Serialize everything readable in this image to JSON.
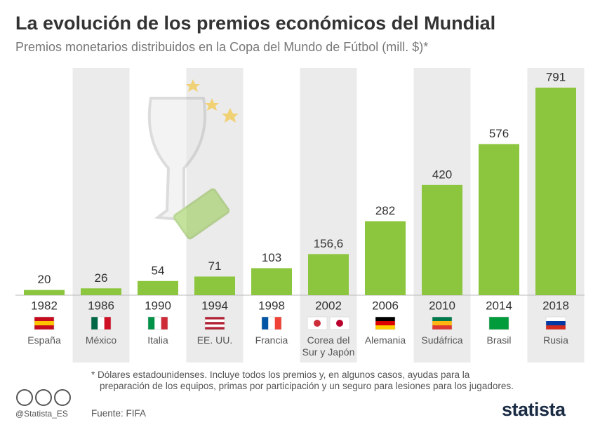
{
  "chart_data": {
    "type": "bar",
    "title": "La evolución de los premios económicos del Mundial",
    "subtitle": "Premios monetarios distribuidos en la Copa del Mundo de Fútbol (mill. $)*",
    "categories": [
      "1982",
      "1986",
      "1990",
      "1994",
      "1998",
      "2002",
      "2006",
      "2010",
      "2014",
      "2018"
    ],
    "hosts": [
      "España",
      "México",
      "Italia",
      "EE. UU.",
      "Francia",
      "Corea del Sur y Japón",
      "Alemania",
      "Sudáfrica",
      "Brasil",
      "Rusia"
    ],
    "values": [
      20,
      26,
      54,
      71,
      103,
      156.6,
      282,
      420,
      576,
      791
    ],
    "value_labels": [
      "20",
      "26",
      "54",
      "71",
      "103",
      "156,6",
      "282",
      "420",
      "576",
      "791"
    ],
    "color": "#8cc63e",
    "footnote": "* Dólares estadounidenses. Incluye todos los premios y, en algunos casos, ayudas para la preparación de los equipos, primas por participación y un seguro para lesiones para los jugadores.",
    "handle": "@Statista_ES",
    "source": "Fuente: FIFA",
    "brand": "statista"
  }
}
